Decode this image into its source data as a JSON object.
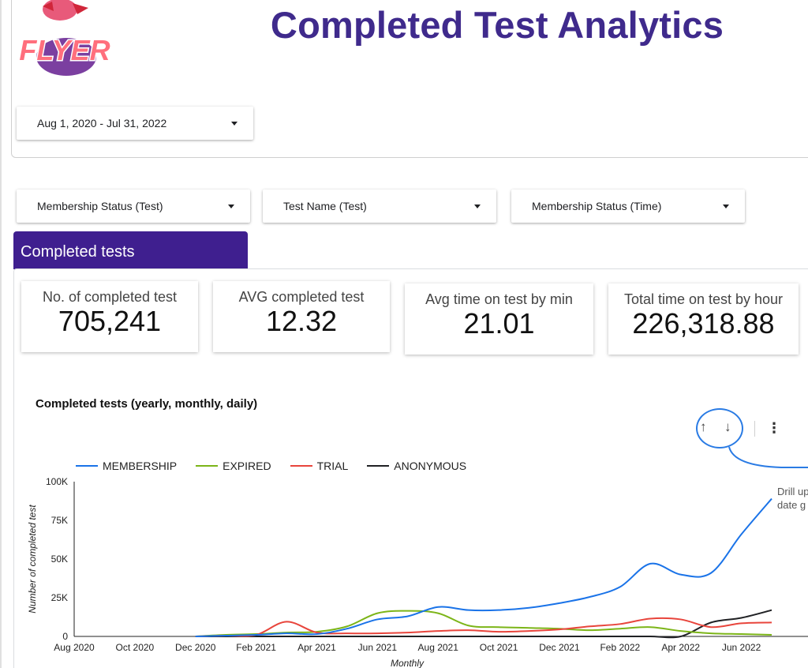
{
  "header": {
    "logo_text": "FLYER",
    "title": "Completed Test Analytics"
  },
  "filters": {
    "date_range": "Aug 1, 2020 - Jul 31, 2022",
    "membership_status_test": "Membership Status (Test)",
    "test_name_test": "Test Name (Test)",
    "membership_status_time": "Membership Status (Time)"
  },
  "section": {
    "tab_label": "Completed tests"
  },
  "kpis": [
    {
      "label": "No. of completed test",
      "value": "705,241"
    },
    {
      "label": "AVG completed test",
      "value": "12.32"
    },
    {
      "label": "Avg time on test by min",
      "value": "21.01"
    },
    {
      "label": "Total time on test by hour",
      "value": "226,318.88"
    }
  ],
  "chart_controls": {
    "drill_up_icon": "arrow-up-icon",
    "drill_down_icon": "arrow-down-icon",
    "more_icon": "more-vert-icon",
    "tooltip_line1": "Drill up",
    "tooltip_line2": "date g"
  },
  "colors": {
    "title": "#3f2a8c",
    "tab": "#3f1f8f",
    "membership": "#1a73e8",
    "expired": "#7cb518",
    "trial": "#e8453c",
    "anonymous": "#202124",
    "highlight": "#2a7be4"
  },
  "chart_data": {
    "type": "line",
    "title": "Completed tests (yearly, monthly, daily)",
    "xlabel": "Monthly",
    "ylabel": "Number of completed test",
    "ylim": [
      0,
      100000
    ],
    "yticks": [
      0,
      25000,
      50000,
      75000,
      100000
    ],
    "ytick_labels": [
      "0",
      "25K",
      "50K",
      "75K",
      "100K"
    ],
    "grid": false,
    "legend": "top-left",
    "x": [
      "Aug 2020",
      "Sep 2020",
      "Oct 2020",
      "Nov 2020",
      "Dec 2020",
      "Jan 2021",
      "Feb 2021",
      "Mar 2021",
      "Apr 2021",
      "May 2021",
      "Jun 2021",
      "Jul 2021",
      "Aug 2021",
      "Sep 2021",
      "Oct 2021",
      "Nov 2021",
      "Dec 2021",
      "Jan 2022",
      "Feb 2022",
      "Mar 2022",
      "Apr 2022",
      "May 2022",
      "Jun 2022",
      "Jul 2022"
    ],
    "x_tick_labels": [
      "Aug 2020",
      "Oct 2020",
      "Dec 2020",
      "Feb 2021",
      "Apr 2021",
      "Jun 2021",
      "Aug 2021",
      "Oct 2021",
      "Dec 2021",
      "Feb 2022",
      "Apr 2022",
      "Jun 2022"
    ],
    "series": [
      {
        "name": "MEMBERSHIP",
        "color": "#1a73e8",
        "values": [
          null,
          null,
          null,
          null,
          0,
          500,
          1000,
          2000,
          1500,
          5000,
          11000,
          13000,
          19000,
          17000,
          17000,
          18500,
          21500,
          25500,
          32000,
          47000,
          40000,
          41000,
          66000,
          89000
        ]
      },
      {
        "name": "EXPIRED",
        "color": "#7cb518",
        "values": [
          null,
          null,
          null,
          null,
          0,
          1000,
          1500,
          2500,
          3000,
          6500,
          15000,
          16500,
          15000,
          7000,
          6000,
          5500,
          5000,
          4000,
          5000,
          6000,
          3500,
          2000,
          1500,
          1000
        ]
      },
      {
        "name": "TRIAL",
        "color": "#e8453c",
        "values": [
          null,
          null,
          null,
          null,
          0,
          500,
          1000,
          9500,
          2500,
          2000,
          2000,
          2500,
          3500,
          4000,
          3000,
          3500,
          4500,
          6500,
          8000,
          11500,
          11000,
          6000,
          8500,
          9000
        ]
      },
      {
        "name": "ANONYMOUS",
        "color": "#202124",
        "values": [
          null,
          null,
          null,
          null,
          0,
          0,
          0,
          0,
          0,
          0,
          0,
          0,
          0,
          0,
          0,
          0,
          0,
          0,
          0,
          0,
          0,
          9000,
          12000,
          17000
        ]
      }
    ]
  }
}
